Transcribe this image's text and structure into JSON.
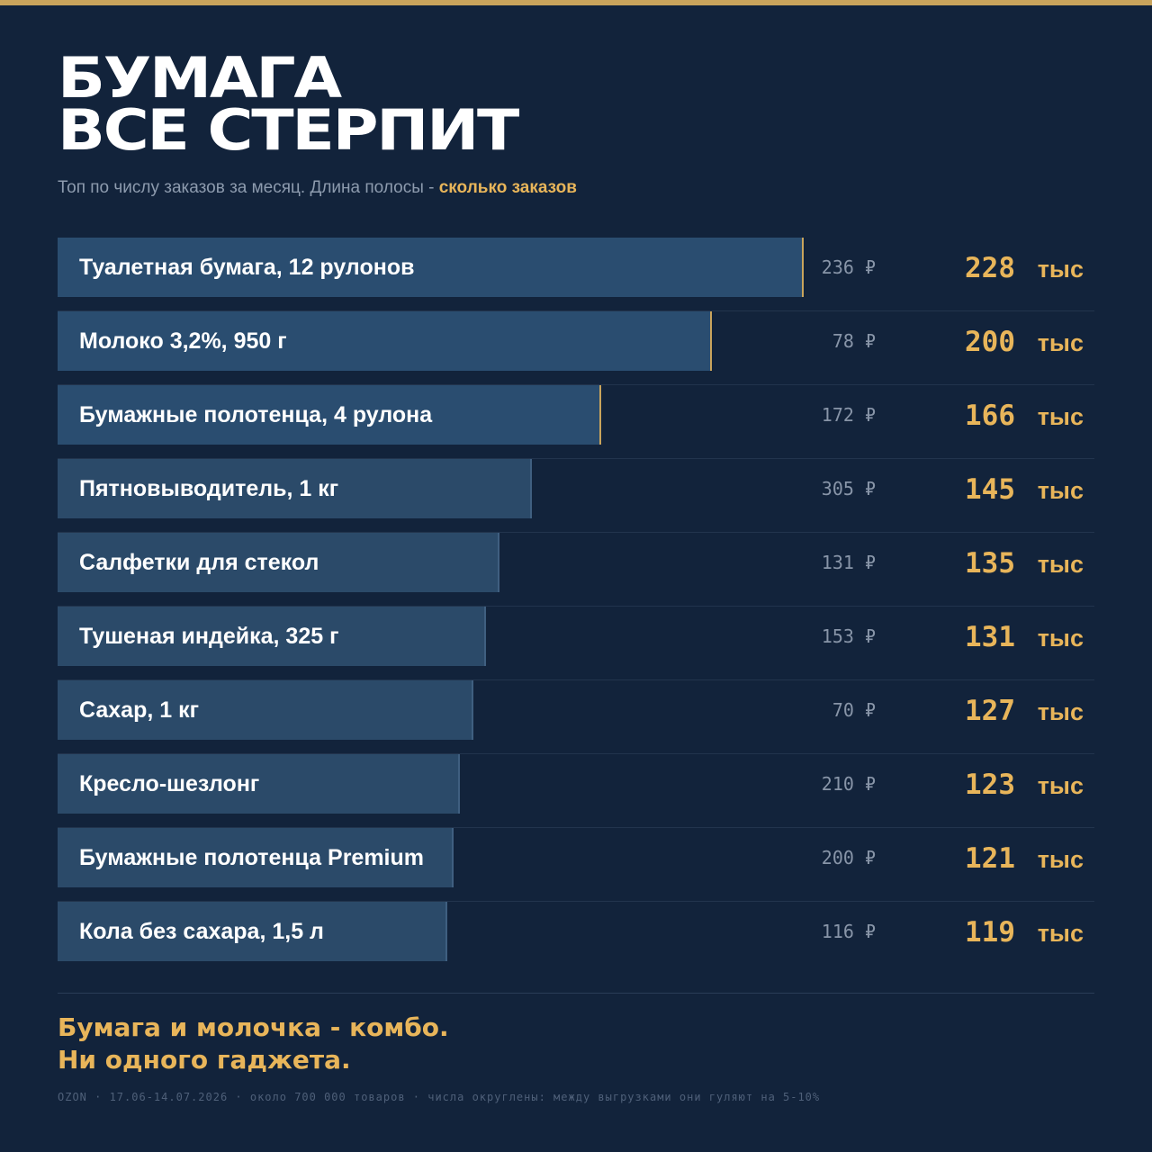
{
  "title": {
    "line1": "БУМАГА",
    "line2": "ВСЕ СТЕРПИТ"
  },
  "subtitle": {
    "text": "Топ по числу заказов за месяц. Длина полосы - ",
    "accent": "сколько заказов"
  },
  "colors": {
    "background": "#12233b",
    "bar": "#2b4a69",
    "accent": "#e8b55a",
    "top_stripe": "#c9a45c"
  },
  "unit_label": "тыс",
  "currency": "₽",
  "chart_data": {
    "type": "bar",
    "orientation": "horizontal",
    "categories": [
      "Туалетная бумага, 12 рулонов",
      "Молоко 3,2%, 950 г",
      "Бумажные полотенца, 4 рулона",
      "Пятновыводитель, 1 кг",
      "Салфетки для стекол",
      "Тушеная индейка, 325 г",
      "Сахар, 1 кг",
      "Кресло-шезлонг",
      "Бумажные полотенца Premium",
      "Кола без сахара, 1,5 л"
    ],
    "values": [
      228,
      200,
      166,
      145,
      135,
      131,
      127,
      123,
      121,
      119
    ],
    "prices": [
      236,
      78,
      172,
      305,
      131,
      153,
      70,
      210,
      200,
      116
    ],
    "value_unit": "тыс",
    "price_unit": "₽",
    "highlighted": [
      0,
      1,
      2
    ]
  },
  "conclusion": {
    "line1": "Бумага и молочка - комбо.",
    "line2": "Ни одного гаджета."
  },
  "footer": "OZON · 17.06-14.07.2026 · около 700 000 товаров · числа округлены: между выгрузками они гуляют на 5-10%"
}
